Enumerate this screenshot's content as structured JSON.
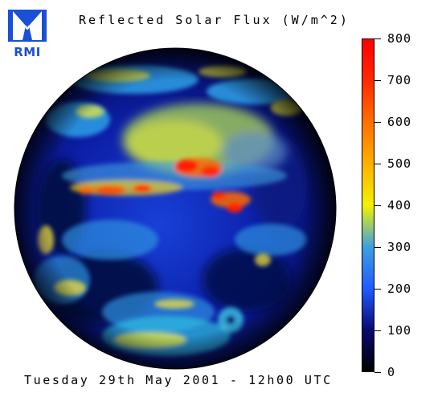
{
  "logo": {
    "text": "RMI",
    "icon": "rmi-logo-icon",
    "color": "#1a4fd6"
  },
  "title": "Reflected Solar Flux (W/m^2)",
  "timestamp": "Tuesday 29th May 2001 - 12h00 UTC",
  "colorbar": {
    "min": 0,
    "max": 800,
    "ticks": [
      "0",
      "100",
      "200",
      "300",
      "400",
      "500",
      "600",
      "700",
      "800"
    ],
    "stops": [
      {
        "value": 0,
        "color": "#000000"
      },
      {
        "value": 100,
        "color": "#0a0a70"
      },
      {
        "value": 200,
        "color": "#1e5cff"
      },
      {
        "value": 300,
        "color": "#3fa0e0"
      },
      {
        "value": 400,
        "color": "#f2f200"
      },
      {
        "value": 500,
        "color": "#ffb000"
      },
      {
        "value": 600,
        "color": "#ff7000"
      },
      {
        "value": 700,
        "color": "#ff2a00"
      },
      {
        "value": 800,
        "color": "#ff0000"
      }
    ]
  },
  "image": {
    "content": "full-disk satellite view of Earth colour-coded by reflected solar flux"
  }
}
